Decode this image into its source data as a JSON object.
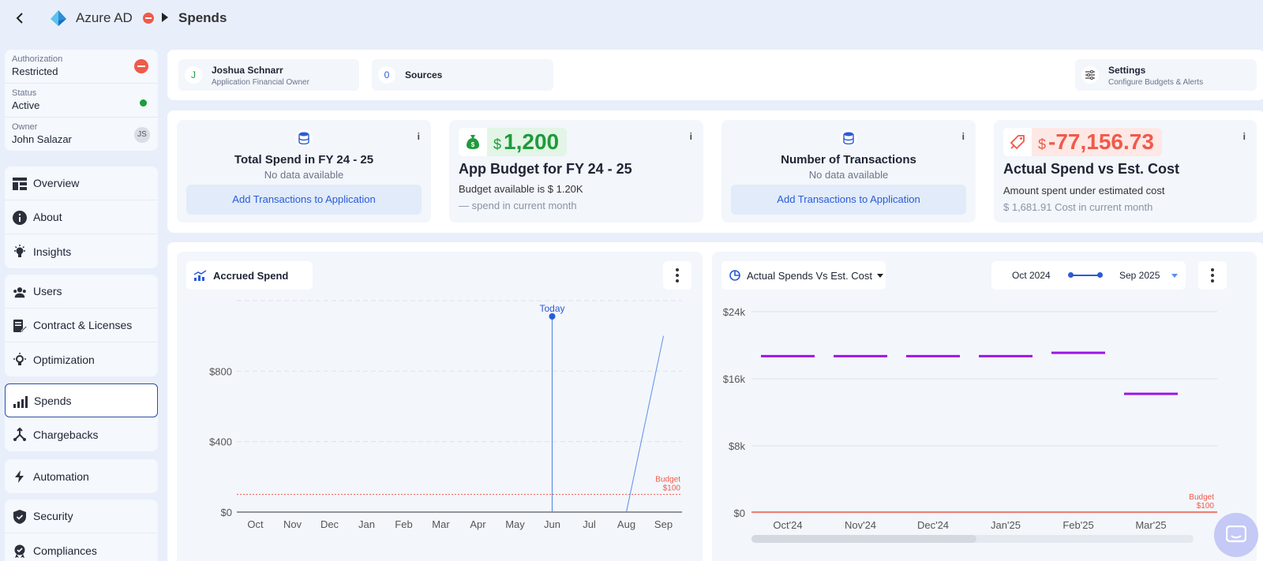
{
  "header": {
    "app_name": "Azure AD",
    "page_title": "Spends"
  },
  "info": {
    "authorization_label": "Authorization",
    "authorization_value": "Restricted",
    "status_label": "Status",
    "status_value": "Active",
    "owner_label": "Owner",
    "owner_value": "John Salazar",
    "owner_initials": "JS"
  },
  "nav": {
    "overview": "Overview",
    "about": "About",
    "insights": "Insights",
    "users": "Users",
    "contracts": "Contract & Licenses",
    "optimization": "Optimization",
    "spends": "Spends",
    "chargebacks": "Chargebacks",
    "automation": "Automation",
    "security": "Security",
    "compliances": "Compliances"
  },
  "owner_strip": {
    "owner_initial": "J",
    "owner_name": "Joshua Schnarr",
    "owner_role": "Application Financial Owner",
    "sources_count": "0",
    "sources_label": "Sources",
    "settings_title": "Settings",
    "settings_sub": "Configure Budgets & Alerts"
  },
  "cards": {
    "total_spend_title": "Total Spend in FY 24 - 25",
    "total_spend_sub": "No data available",
    "add_tx_button": "Add Transactions to Application",
    "budget_currency": "$",
    "budget_amount": "1,200",
    "budget_title": "App Budget for FY 24 - 25",
    "budget_available_prefix": "Budget available is",
    "budget_available_value": "$ 1.20K",
    "budget_month_dash": "—",
    "budget_month_text": "spend in current month",
    "tx_title": "Number of Transactions",
    "tx_sub": "No data available",
    "actual_currency": "$",
    "actual_amount": "-77,156.73",
    "actual_title": "Actual Spend vs Est. Cost",
    "actual_line1": "Amount spent under estimated cost",
    "actual_month_value": "$ 1,681.91",
    "actual_month_text": "Cost in current month",
    "info_glyph": "i"
  },
  "charts": {
    "accrued_title": "Accrued Spend",
    "actual_title": "Actual Spends Vs Est. Cost",
    "range_start": "Oct 2024",
    "range_end": "Sep 2025"
  },
  "chart_data": [
    {
      "type": "line",
      "title": "Accrued Spend",
      "categories": [
        "Oct",
        "Nov",
        "Dec",
        "Jan",
        "Feb",
        "Mar",
        "Apr",
        "May",
        "Jun",
        "Jul",
        "Aug",
        "Sep"
      ],
      "y_ticks": [
        "$0",
        "$400",
        "$800"
      ],
      "ylim": [
        0,
        1200
      ],
      "series": [
        {
          "values": [
            0,
            0,
            0,
            0,
            0,
            0,
            0,
            0,
            0,
            0,
            0,
            1000
          ]
        }
      ],
      "budget_line": {
        "value": 100,
        "label": "Budget",
        "label_value": "$100"
      },
      "today_marker": {
        "label": "Today",
        "x": "Jun"
      }
    },
    {
      "type": "bar",
      "title": "Actual Spends Vs Est. Cost",
      "categories": [
        "Oct'24",
        "Nov'24",
        "Dec'24",
        "Jan'25",
        "Feb'25",
        "Mar'25"
      ],
      "y_ticks": [
        "$0",
        "$8k",
        "$16k",
        "$24k"
      ],
      "ylim": [
        0,
        24000
      ],
      "series": [
        {
          "values": [
            18700,
            18700,
            18700,
            18700,
            19100,
            14200
          ]
        }
      ],
      "budget_line": {
        "value": 100,
        "label": "Budget",
        "label_value": "$100"
      }
    }
  ],
  "colors": {
    "accent": "#2a5bd7",
    "est_cost": "#9b16e8",
    "budget": "#f05a4a",
    "positive": "#1e9b3b"
  }
}
